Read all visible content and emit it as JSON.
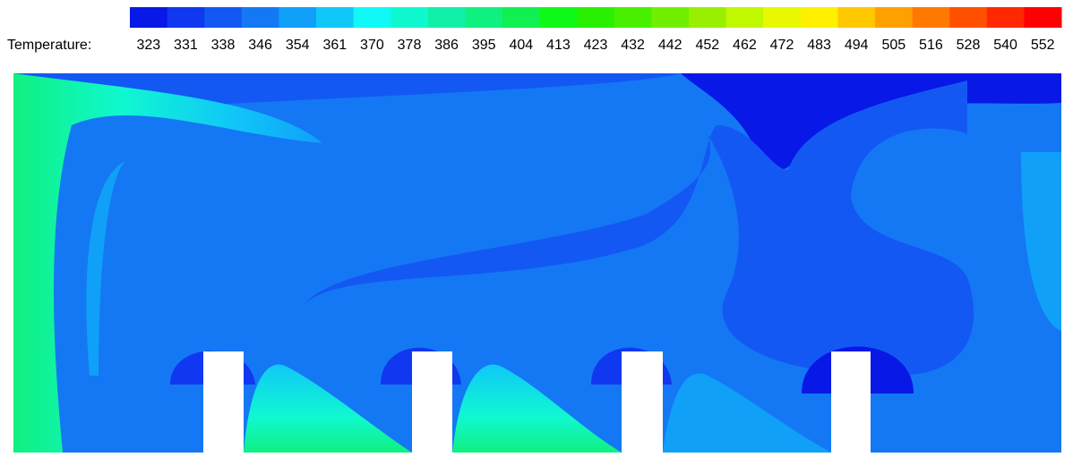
{
  "legend": {
    "label": "Temperature:",
    "levels": [
      323,
      331,
      338,
      346,
      354,
      361,
      370,
      378,
      386,
      395,
      404,
      413,
      423,
      432,
      442,
      452,
      462,
      472,
      483,
      494,
      505,
      516,
      528,
      540,
      552
    ],
    "colors": [
      "#0818e6",
      "#1038f0",
      "#1458f4",
      "#1478f4",
      "#10a0f8",
      "#10c8f8",
      "#10f8f8",
      "#10f8d0",
      "#10f0a8",
      "#10f080",
      "#10f050",
      "#10f818",
      "#28f000",
      "#48f000",
      "#70f000",
      "#98f000",
      "#c0f800",
      "#e8f800",
      "#fff000",
      "#ffc800",
      "#ffa000",
      "#ff7800",
      "#ff5000",
      "#ff2800",
      "#ff0000"
    ]
  }
}
